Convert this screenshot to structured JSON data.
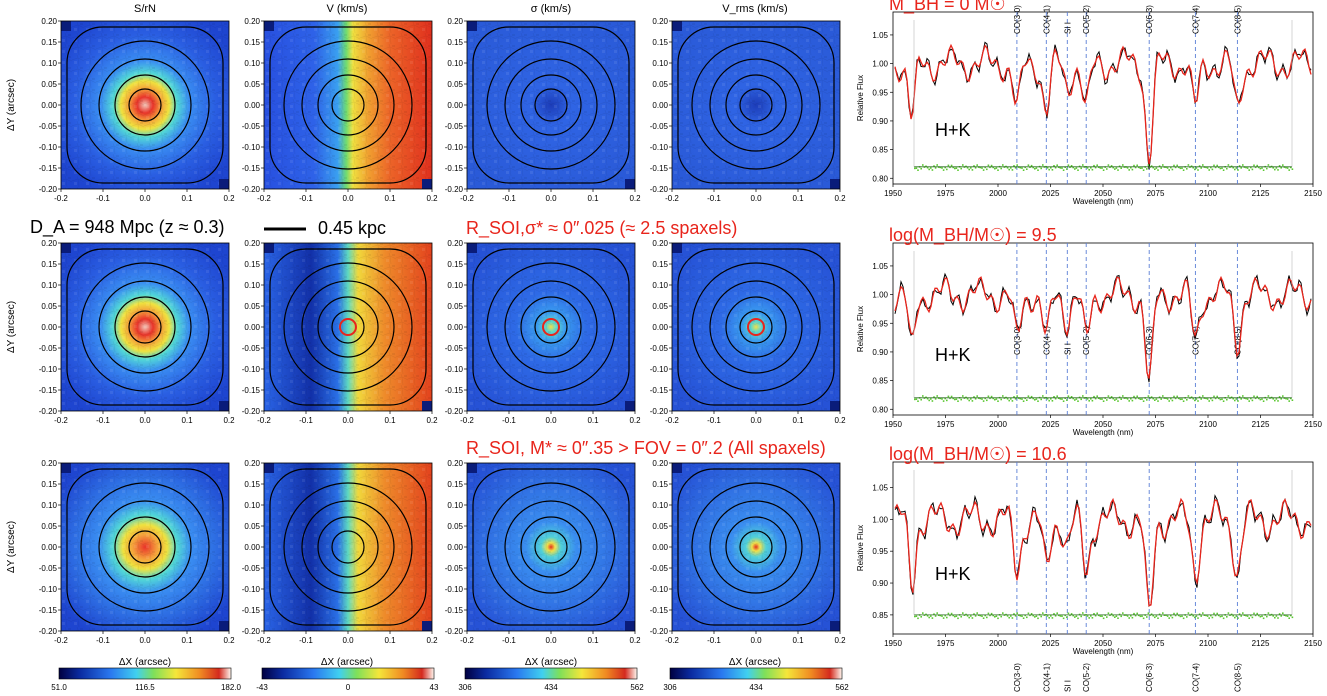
{
  "columns": [
    "S/rN",
    "V (km/s)",
    "σ (km/s)",
    "V_rms (km/s)"
  ],
  "axis": {
    "x_label": "ΔX (arcsec)",
    "y_label": "ΔY (arcsec)",
    "x_ticks": [
      "-0.2",
      "-0.1",
      "0.0",
      "0.1",
      "0.2"
    ],
    "y_ticks": [
      "0.20",
      "0.15",
      "0.10",
      "0.05",
      "0.00",
      "-0.05",
      "-0.10",
      "-0.15",
      "-0.20"
    ]
  },
  "annotations": {
    "distance": "D_A = 948 Mpc (z ≈ 0.3)",
    "scalebar": "0.45 kpc",
    "r_soi_sigma": "R_SOI,σ* ≈ 0″.025 (≈ 2.5 spaxels)",
    "r_soi_mstar": "R_SOI, M* ≈ 0″.35 > FOV = 0″.2 (All spaxels)"
  },
  "colorbars": [
    {
      "ticks": [
        "51.0",
        "116.5",
        "182.0"
      ]
    },
    {
      "ticks": [
        "-43",
        "0",
        "43"
      ]
    },
    {
      "ticks": [
        "306",
        "434",
        "562"
      ]
    },
    {
      "ticks": [
        "306",
        "434",
        "562"
      ]
    }
  ],
  "spectra": {
    "rows": [
      {
        "title": "M_BH = 0 M☉",
        "y_ticks": [
          "1.05",
          "1.00",
          "0.95",
          "0.90",
          "0.85",
          "0.80"
        ]
      },
      {
        "title": "log(M_BH/M☉) = 9.5",
        "y_ticks": [
          "1.05",
          "1.00",
          "0.95",
          "0.90",
          "0.85",
          "0.80"
        ]
      },
      {
        "title": "log(M_BH/M☉) = 10.6",
        "y_ticks": [
          "1.05",
          "1.00",
          "0.95",
          "0.90",
          "0.85"
        ]
      }
    ],
    "band": "H+K",
    "x_label": "Wavelength (nm)",
    "y_label": "Relative Flux",
    "x_ticks": [
      "1950",
      "1975",
      "2000",
      "2025",
      "2050",
      "2075",
      "2100",
      "2125",
      "2150"
    ],
    "lines": [
      "CO(3-0)",
      "CO(4-1)",
      "SI I",
      "CO(5-2)",
      "CO(6-3)",
      "CO(7-4)",
      "CO(8-5)"
    ]
  },
  "colors": {
    "accent_red": "#e8251c",
    "model_line": "#e8251c",
    "data_line": "#000000",
    "residual": "#5cc832",
    "line_marker": "#5a7fd6"
  }
}
